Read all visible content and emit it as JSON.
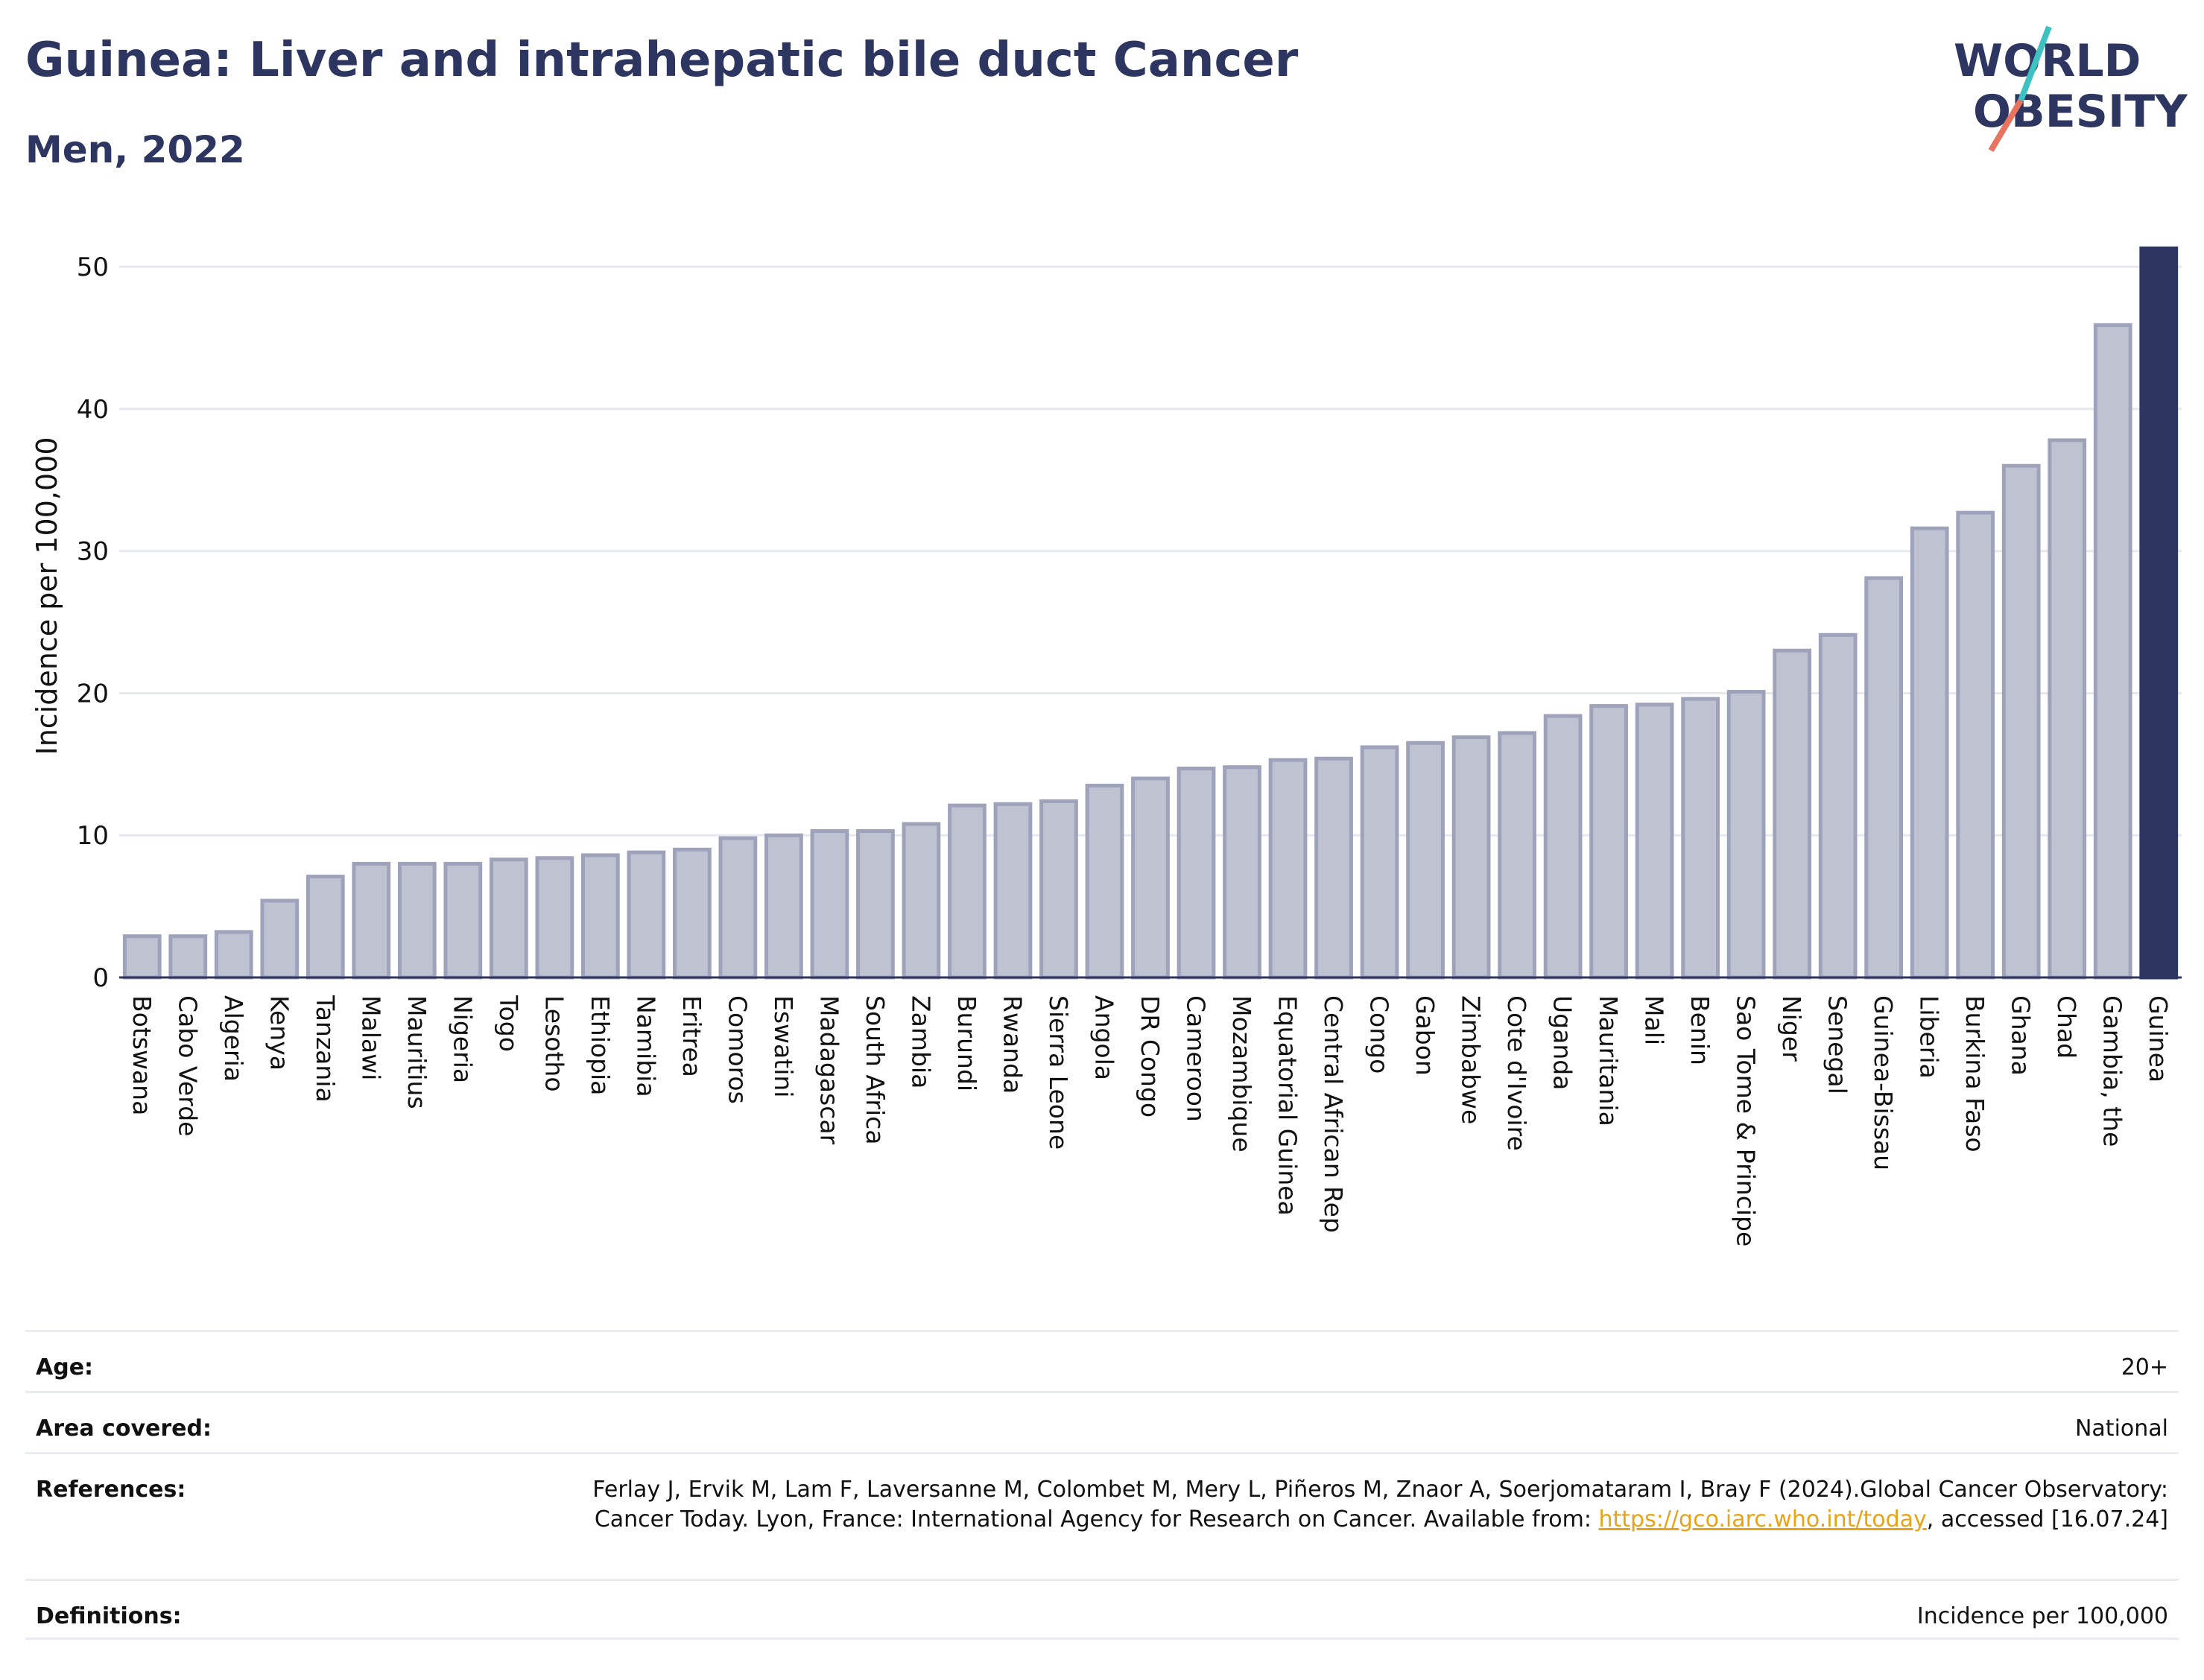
{
  "header": {
    "title": "Guinea: Liver and intrahepatic bile duct Cancer",
    "subtitle": "Men, 2022"
  },
  "logo": {
    "line1": "WORLD",
    "line2": "OBESITY",
    "slash_colors": [
      "#3ec1c1",
      "#e8735e"
    ],
    "text_color": "#2d3561"
  },
  "colors": {
    "bar_fill": "#bfc3d1",
    "bar_stroke": "#9ea3bb",
    "highlight": "#2d3561",
    "grid": "#e6e8ef"
  },
  "chart_data": {
    "type": "bar",
    "title": "",
    "xlabel": "",
    "ylabel": "Incidence per 100,000",
    "ylim": [
      0,
      52
    ],
    "yticks": [
      0,
      10,
      20,
      30,
      40,
      50
    ],
    "grid": true,
    "highlight_category": "Guinea",
    "categories": [
      "Botswana",
      "Cabo Verde",
      "Algeria",
      "Kenya",
      "Tanzania",
      "Malawi",
      "Mauritius",
      "Nigeria",
      "Togo",
      "Lesotho",
      "Ethiopia",
      "Namibia",
      "Eritrea",
      "Comoros",
      "Eswatini",
      "Madagascar",
      "South Africa",
      "Zambia",
      "Burundi",
      "Rwanda",
      "Sierra Leone",
      "Angola",
      "DR Congo",
      "Cameroon",
      "Mozambique",
      "Equatorial Guinea",
      "Central African Rep",
      "Congo",
      "Gabon",
      "Zimbabwe",
      "Cote d'Ivoire",
      "Uganda",
      "Mauritania",
      "Mali",
      "Benin",
      "Sao Tome & Principe",
      "Niger",
      "Senegal",
      "Guinea-Bissau",
      "Liberia",
      "Burkina Faso",
      "Ghana",
      "Chad",
      "Gambia, the",
      "Guinea"
    ],
    "values": [
      2.9,
      2.9,
      3.2,
      5.4,
      7.1,
      8.0,
      8.0,
      8.0,
      8.3,
      8.4,
      8.6,
      8.8,
      9.0,
      9.8,
      10.0,
      10.3,
      10.3,
      10.8,
      12.1,
      12.2,
      12.4,
      13.5,
      14.0,
      14.7,
      14.8,
      15.3,
      15.4,
      16.2,
      16.5,
      16.9,
      17.2,
      18.4,
      19.1,
      19.2,
      19.6,
      20.1,
      23.0,
      24.1,
      28.1,
      31.6,
      32.7,
      36.0,
      37.8,
      45.9,
      51.3
    ]
  },
  "info": {
    "age_label": "Age:",
    "age_value": "20+",
    "area_label": "Area covered:",
    "area_value": "National",
    "ref_label": "References:",
    "ref_text_1": "Ferlay J, Ervik M, Lam F, Laversanne M, Colombet M, Mery L, Piñeros M, Znaor A, Soerjomataram I, Bray F (2024).Global Cancer Observatory: Cancer Today. Lyon, France: International Agency for Research on Cancer. Available from: ",
    "ref_link": "https://gco.iarc.who.int/today",
    "ref_text_2": ", accessed [16.07.24]",
    "def_label": "Definitions:",
    "def_value": "Incidence per 100,000"
  }
}
